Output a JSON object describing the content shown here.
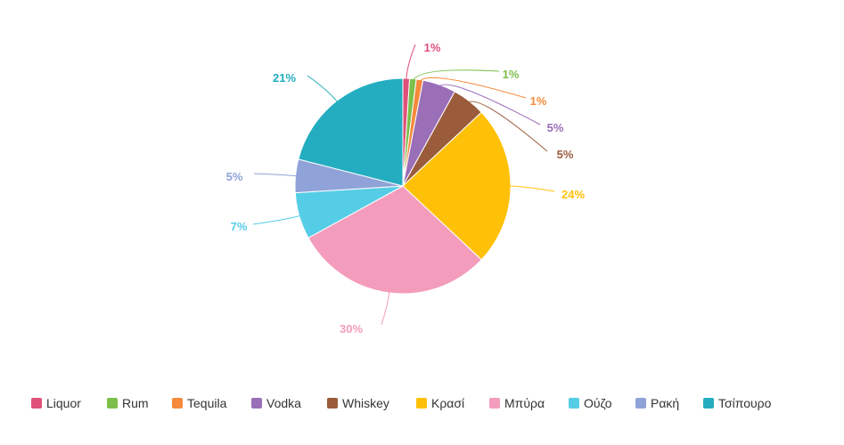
{
  "chart_data": {
    "type": "pie",
    "categories": [
      "Liquor",
      "Rum",
      "Tequila",
      "Vodka",
      "Whiskey",
      "Κρασί",
      "Μπύρα",
      "Ούζο",
      "Ρακή",
      "Τσίπουρο"
    ],
    "values": [
      1,
      1,
      1,
      5,
      5,
      24,
      30,
      7,
      5,
      21
    ],
    "labels": [
      "1%",
      "1%",
      "1%",
      "5%",
      "5%",
      "24%",
      "30%",
      "7%",
      "5%",
      "21%"
    ],
    "colors": [
      "#e0507a",
      "#7cbf4a",
      "#f58a3c",
      "#9b6fb8",
      "#9a5c3a",
      "#ffc107",
      "#f49cbb",
      "#56cde6",
      "#8fa3d8",
      "#24adc0"
    ],
    "title": "",
    "legend": "bottom"
  }
}
